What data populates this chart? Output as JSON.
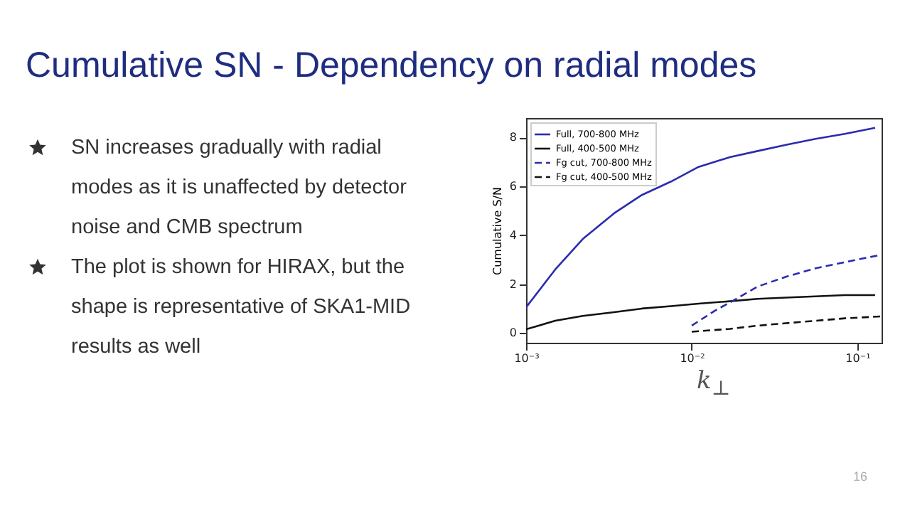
{
  "chart_data": {
    "type": "line",
    "title": "Cumulative SN - Dependency on radial modes",
    "xlabel": "k$_{⊥}$",
    "ylabel": "Cumulative S/N",
    "log": "x",
    "legend": "top left",
    "xlim": [
      0.001,
      0.14
    ],
    "ylim": [
      -0.4,
      8.8
    ],
    "xticks": [
      {
        "value": 0.001,
        "label": "10⁻³"
      },
      {
        "value": 0.01,
        "label": "10⁻²"
      },
      {
        "value": 0.1,
        "label": "10⁻¹"
      }
    ],
    "yticks": [
      0,
      2,
      4,
      6,
      8
    ],
    "annotations": [
      "SN increases gradually with radial modes as it is unaffected by detector noise and CMB spectrum",
      "The plot is shown for HIRAX, but the shape is representative of SKA1-MID results as well",
      "16"
    ],
    "series": [
      {
        "name": "Full, 700-800 MHz",
        "color": "#2b2bb0",
        "line_style": "solid",
        "x": [
          0.001,
          0.0015,
          0.0022,
          0.0034,
          0.005,
          0.0075,
          0.011,
          0.017,
          0.025,
          0.037,
          0.056,
          0.084,
          0.128
        ],
        "values": [
          1.05,
          2.6,
          3.85,
          4.9,
          5.65,
          6.2,
          6.8,
          7.2,
          7.45,
          7.7,
          7.95,
          8.15,
          8.4
        ]
      },
      {
        "name": "Full, 400-500 MHz",
        "color": "#111111",
        "line_style": "solid",
        "x": [
          0.001,
          0.0015,
          0.0022,
          0.0034,
          0.005,
          0.0075,
          0.011,
          0.017,
          0.025,
          0.037,
          0.056,
          0.084,
          0.128
        ],
        "values": [
          0.15,
          0.5,
          0.7,
          0.85,
          1.0,
          1.1,
          1.2,
          1.3,
          1.4,
          1.45,
          1.5,
          1.55,
          1.55
        ]
      },
      {
        "name": "Fg cut, 700-800 MHz",
        "color": "#2b2bb0",
        "line_style": "dashed",
        "x": [
          0.01,
          0.0137,
          0.017,
          0.025,
          0.037,
          0.056,
          0.084,
          0.139
        ],
        "values": [
          0.3,
          0.9,
          1.25,
          1.9,
          2.3,
          2.65,
          2.9,
          3.2
        ]
      },
      {
        "name": "Fg cut, 400-500 MHz",
        "color": "#111111",
        "line_style": "dashed",
        "x": [
          0.01,
          0.017,
          0.025,
          0.037,
          0.056,
          0.084,
          0.139
        ],
        "values": [
          0.05,
          0.17,
          0.3,
          0.4,
          0.5,
          0.6,
          0.68
        ]
      }
    ]
  }
}
